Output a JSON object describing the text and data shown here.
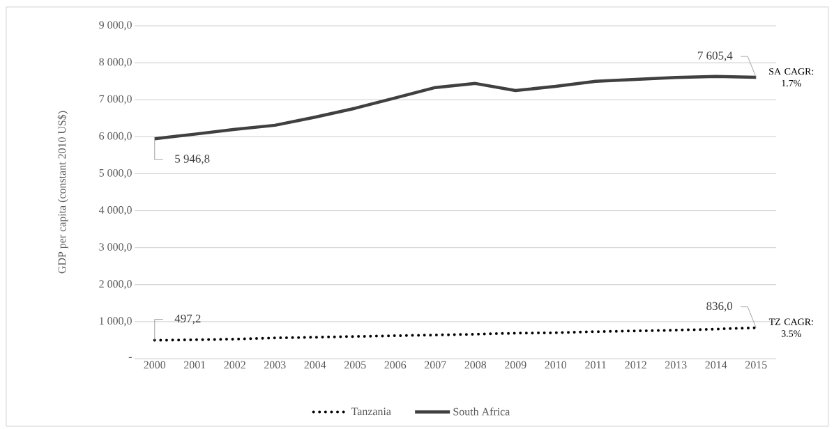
{
  "chart_data": {
    "type": "line",
    "ylabel": "GDP per capita (constant 2010 US$)",
    "categories": [
      "2000",
      "2001",
      "2002",
      "2003",
      "2004",
      "2005",
      "2006",
      "2007",
      "2008",
      "2009",
      "2010",
      "2011",
      "2012",
      "2013",
      "2014",
      "2015"
    ],
    "series": [
      {
        "name": "Tanzania",
        "color": "#000000",
        "line_style": "dotted",
        "values": [
          497.2,
          510,
          530,
          560,
          580,
          600,
          620,
          640,
          660,
          690,
          700,
          730,
          750,
          770,
          800,
          836.0
        ],
        "value_labels": [
          "497,2",
          null,
          null,
          null,
          null,
          null,
          null,
          null,
          null,
          null,
          null,
          null,
          null,
          null,
          null,
          "836,0"
        ]
      },
      {
        "name": "South Africa",
        "color": "#404040",
        "line_style": "solid",
        "values": [
          5946.8,
          6070,
          6200,
          6310,
          6530,
          6770,
          7050,
          7330,
          7440,
          7250,
          7360,
          7500,
          7550,
          7600,
          7630,
          7605.4
        ],
        "value_labels": [
          "5 946,8",
          null,
          null,
          null,
          null,
          null,
          null,
          null,
          null,
          null,
          null,
          null,
          null,
          null,
          null,
          "7 605,4"
        ]
      }
    ],
    "ylim": [
      0,
      9000
    ],
    "yticks": [
      {
        "value": 0,
        "label": "-"
      },
      {
        "value": 1000,
        "label": "1 000,0"
      },
      {
        "value": 2000,
        "label": "2 000,0"
      },
      {
        "value": 3000,
        "label": "3 000,0"
      },
      {
        "value": 4000,
        "label": "4 000,0"
      },
      {
        "value": 5000,
        "label": "5 000,0"
      },
      {
        "value": 6000,
        "label": "6 000,0"
      },
      {
        "value": 7000,
        "label": "7 000,0"
      },
      {
        "value": 8000,
        "label": "8 000,0"
      },
      {
        "value": 9000,
        "label": "9 000,0"
      }
    ],
    "grid": "y",
    "legend": "bottom",
    "marker": "none",
    "annotations": [
      {
        "text": "SA CAGR: 1.7%",
        "x": "2015",
        "y": 7605.4
      },
      {
        "text": "TZ CAGR: 3.5%",
        "x": "2015",
        "y": 836.0
      }
    ]
  }
}
